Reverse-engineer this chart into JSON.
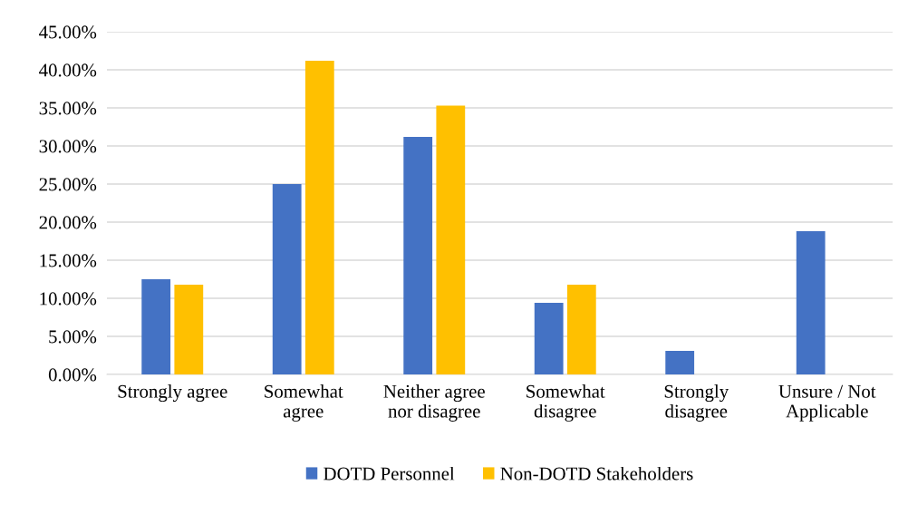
{
  "chart_data": {
    "type": "bar",
    "categories": [
      "Strongly agree",
      "Somewhat\nagree",
      "Neither agree\nnor disagree",
      "Somewhat\ndisagree",
      "Strongly\ndisagree",
      "Unsure / Not\nApplicable"
    ],
    "series": [
      {
        "name": "DOTD Personnel",
        "color": "#4472c4",
        "values": [
          12.5,
          25.0,
          31.2,
          9.4,
          3.1,
          18.8
        ]
      },
      {
        "name": "Non-DOTD Stakeholders",
        "color": "#ffc000",
        "values": [
          11.8,
          41.2,
          35.3,
          11.8,
          0,
          0
        ]
      }
    ],
    "ylim": [
      0,
      45
    ],
    "yticks": [
      {
        "value": 0,
        "label": "0.00%"
      },
      {
        "value": 5,
        "label": "5.00%"
      },
      {
        "value": 10,
        "label": "10.00%"
      },
      {
        "value": 15,
        "label": "15.00%"
      },
      {
        "value": 20,
        "label": "20.00%"
      },
      {
        "value": 25,
        "label": "25.00%"
      },
      {
        "value": 30,
        "label": "30.00%"
      },
      {
        "value": 35,
        "label": "35.00%"
      },
      {
        "value": 40,
        "label": "40.00%"
      },
      {
        "value": 45,
        "label": "45.00%"
      }
    ],
    "grid": "y",
    "legend": "bottom"
  }
}
